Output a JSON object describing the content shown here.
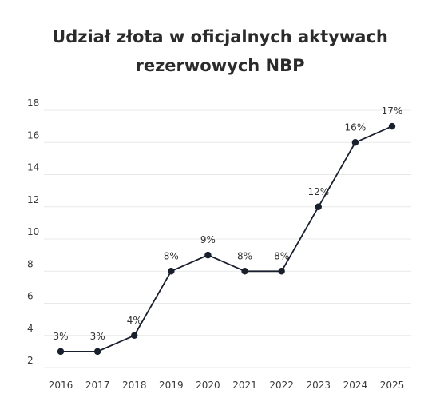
{
  "title_line1": "Udział złota w oficjalnych aktywach",
  "title_line2": "rezerwowych NBP",
  "colors": {
    "line": "#1a1f2e",
    "marker": "#1a1f2e",
    "grid": "#e8e8e8",
    "text": "#333333"
  },
  "chart_data": {
    "type": "line",
    "title": "Udział złota w oficjalnych aktywach rezerwowych NBP",
    "xlabel": "",
    "ylabel": "",
    "categories": [
      "2016",
      "2017",
      "2018",
      "2019",
      "2020",
      "2021",
      "2022",
      "2023",
      "2024",
      "2025"
    ],
    "series": [
      {
        "values": [
          3,
          3,
          4,
          8,
          9,
          8,
          8,
          12,
          16,
          17
        ],
        "labels": [
          "3%",
          "3%",
          "4%",
          "8%",
          "9%",
          "8%",
          "8%",
          "12%",
          "16%",
          "17%"
        ]
      }
    ],
    "yticks": [
      "2",
      "4",
      "6",
      "8",
      "10",
      "12",
      "14",
      "16",
      "18"
    ],
    "ylim": [
      2,
      18
    ],
    "grid": true,
    "legend": "none"
  }
}
